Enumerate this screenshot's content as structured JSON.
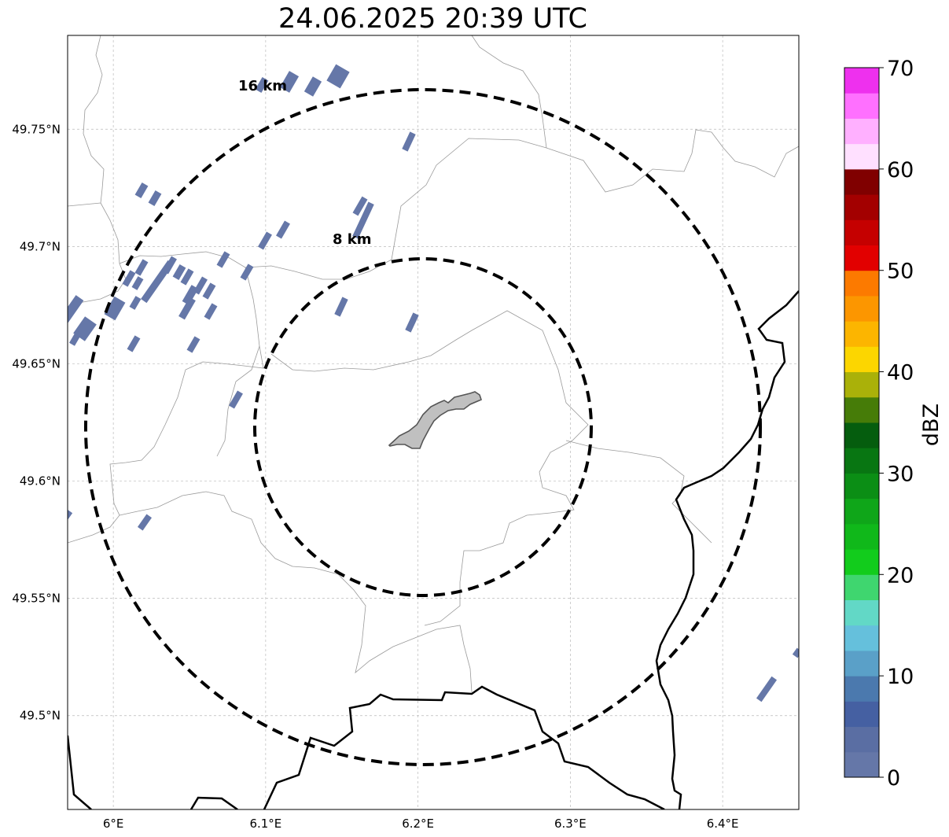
{
  "title": "24.06.2025 20:39 UTC",
  "map": {
    "lon_range": [
      5.97,
      6.45
    ],
    "lat_range": [
      49.46,
      49.79
    ],
    "lon_ticks": [
      {
        "value": 6.0,
        "label": "6°E"
      },
      {
        "value": 6.1,
        "label": "6.1°E"
      },
      {
        "value": 6.2,
        "label": "6.2°E"
      },
      {
        "value": 6.3,
        "label": "6.3°E"
      },
      {
        "value": 6.4,
        "label": "6.4°E"
      }
    ],
    "lat_ticks": [
      {
        "value": 49.75,
        "label": "49.75°N"
      },
      {
        "value": 49.7,
        "label": "49.7°N"
      },
      {
        "value": 49.65,
        "label": "49.65°N"
      },
      {
        "value": 49.6,
        "label": "49.6°N"
      },
      {
        "value": 49.55,
        "label": "49.55°N"
      },
      {
        "value": 49.5,
        "label": "49.5°N"
      }
    ],
    "grid": true,
    "center": {
      "lon": 6.203,
      "lat": 49.623
    },
    "range_rings": [
      {
        "label": "8 km",
        "radius_km": 8
      },
      {
        "label": "16 km",
        "radius_km": 16
      }
    ],
    "city_color": "#c0c0c0"
  },
  "colorbar": {
    "label": "dBZ",
    "min": 0,
    "max": 70,
    "step": 2.5,
    "ticks": [
      "0",
      "10",
      "20",
      "30",
      "40",
      "50",
      "60",
      "70"
    ],
    "colors": [
      "#6577a8",
      "#5a6ea3",
      "#4560a2",
      "#4b79ae",
      "#5aa0c8",
      "#65c0dc",
      "#62d8c6",
      "#3fd66f",
      "#12cc1c",
      "#10b81a",
      "#0fa619",
      "#0b8e15",
      "#087612",
      "#055d0e",
      "#467c08",
      "#aab109",
      "#fcd600",
      "#fcb500",
      "#fc9600",
      "#fc7a00",
      "#e20000",
      "#c50000",
      "#a30000",
      "#800000",
      "#ffe0ff",
      "#ffb0ff",
      "#ff70ff",
      "#ee30ee"
    ]
  }
}
